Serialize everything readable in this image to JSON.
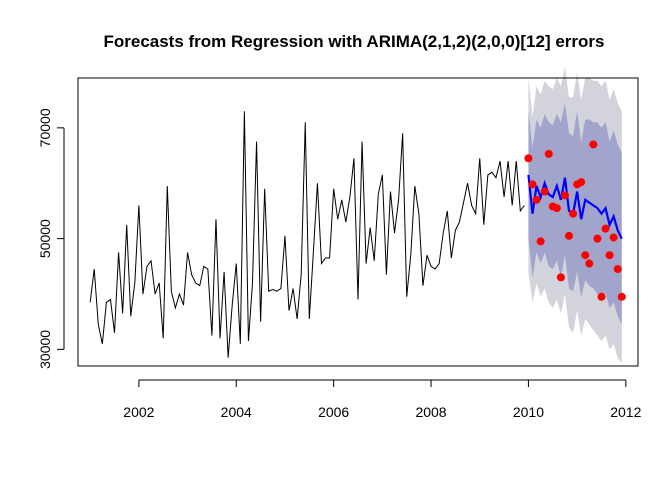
{
  "chart_data": {
    "type": "line",
    "title": "Forecasts from Regression with ARIMA(2,1,2)(2,0,0)[12] errors",
    "xlabel": "",
    "ylabel": "",
    "xlim": [
      2000.75,
      2012.25
    ],
    "ylim": [
      27000,
      79000
    ],
    "x_ticks": [
      2002,
      2004,
      2006,
      2008,
      2010,
      2012
    ],
    "x_tick_labels": [
      "2002",
      "2004",
      "2006",
      "2008",
      "2010",
      "2012"
    ],
    "y_ticks": [
      30000,
      50000,
      70000
    ],
    "y_tick_labels": [
      "30000",
      "50000",
      "70000"
    ],
    "grid": false,
    "legend": "none",
    "colors": {
      "history": "#000000",
      "forecast": "#0000ff",
      "band80": "#a1a5cc",
      "band95": "#d2d3db",
      "actual": "#ff0000"
    },
    "history": {
      "start": 2001.0,
      "frequency": 12,
      "values": [
        38500,
        44500,
        34500,
        31000,
        38500,
        39000,
        33000,
        47500,
        36500,
        52500,
        36000,
        42000,
        56000,
        40000,
        45000,
        46000,
        40000,
        42000,
        32000,
        59500,
        40500,
        37500,
        40000,
        38000,
        47500,
        43500,
        42000,
        41500,
        45000,
        44500,
        32500,
        53500,
        32000,
        44000,
        28500,
        38000,
        45500,
        31000,
        73000,
        31500,
        42000,
        67500,
        35000,
        59000,
        40500,
        40800,
        40500,
        41000,
        50500,
        37000,
        41000,
        35500,
        43500,
        71000,
        35500,
        47500,
        60000,
        45500,
        46500,
        46500,
        59000,
        53500,
        57000,
        53000,
        57500,
        64500,
        39000,
        67500,
        45500,
        52000,
        46000,
        58000,
        61500,
        43500,
        58500,
        51000,
        57000,
        69000,
        39500,
        47000,
        59500,
        54500,
        41500,
        47000,
        45000,
        44500,
        45500,
        51000,
        55000,
        46500,
        51500,
        53000,
        56500,
        60000,
        56000,
        54500,
        64500,
        52500,
        61500,
        62000,
        61000,
        64000,
        57500,
        64000,
        56000,
        64000,
        55000,
        56000
      ]
    },
    "forecast": {
      "start": 2010.0,
      "frequency": 12,
      "mean": [
        61500,
        54500,
        59500,
        57500,
        60000,
        58000,
        57500,
        59500,
        57000,
        61000,
        55000,
        54500,
        58500,
        53500,
        57000,
        56500,
        56000,
        55500,
        54500,
        55500,
        52500,
        54000,
        51500,
        50000
      ],
      "lo80": [
        50000,
        43000,
        47500,
        45500,
        47500,
        45000,
        44500,
        46000,
        43000,
        47000,
        41000,
        40500,
        44000,
        39500,
        42500,
        41500,
        41000,
        40000,
        39000,
        40000,
        37500,
        38500,
        36000,
        34500
      ],
      "hi80": [
        73000,
        66500,
        71500,
        70000,
        72500,
        71000,
        70500,
        72500,
        71000,
        74500,
        69000,
        68500,
        73000,
        67500,
        71500,
        71500,
        71000,
        71000,
        70000,
        71000,
        67500,
        69500,
        67000,
        65500
      ],
      "lo95": [
        44000,
        38500,
        42000,
        39500,
        41000,
        38500,
        37500,
        39000,
        36500,
        40000,
        34000,
        33000,
        37000,
        32500,
        35500,
        34500,
        33500,
        32500,
        31500,
        32500,
        30000,
        31000,
        28500,
        27500
      ],
      "hi95": [
        79000,
        72000,
        77500,
        76000,
        78500,
        77500,
        77000,
        79000,
        77500,
        81000,
        75500,
        75500,
        80000,
        75000,
        79000,
        79000,
        78500,
        78500,
        77500,
        78500,
        75000,
        77000,
        74500,
        73000
      ]
    },
    "actual_points": {
      "start": 2010.0,
      "frequency": 12,
      "values": [
        64500,
        59800,
        57000,
        49500,
        58500,
        65300,
        55800,
        55500,
        43000,
        57800,
        50500,
        54500,
        59800,
        60200,
        47000,
        45500,
        67000,
        50000,
        39500,
        51800,
        47000,
        50200,
        44500,
        39500
      ]
    }
  }
}
